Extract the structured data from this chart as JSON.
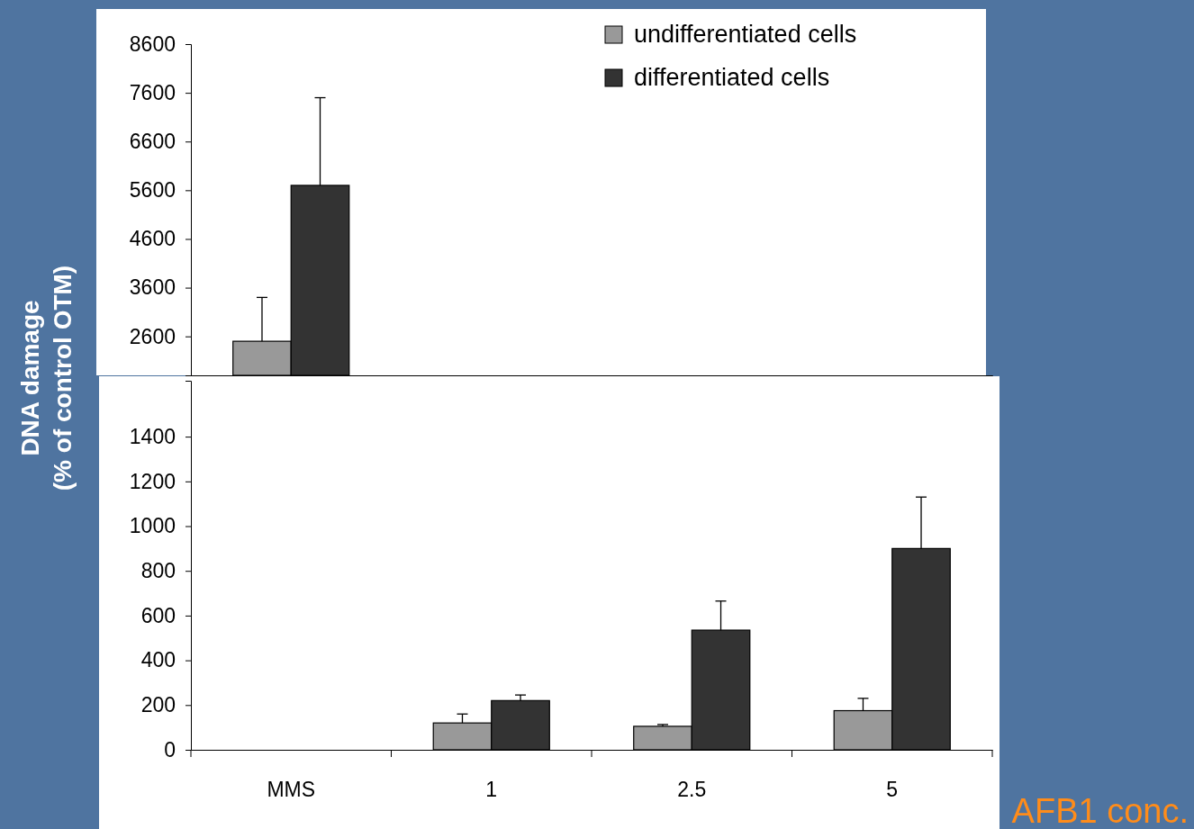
{
  "chart_data": [
    {
      "type": "bar",
      "categories": [
        null,
        null,
        null,
        null
      ],
      "ylim": [
        1800,
        8600
      ],
      "yticks": [
        2600,
        3600,
        4600,
        5600,
        6600,
        7600,
        8600
      ],
      "tick_labels": "y",
      "legend": "top right",
      "grid": false,
      "series": [
        {
          "name": "undifferentiated cells",
          "color": "#999999",
          "values": [
            2500,
            null,
            null,
            null
          ],
          "errors": [
            [
              2500,
              3400
            ],
            null,
            null,
            null
          ]
        },
        {
          "name": "differentiated cells",
          "color": "#333333",
          "values": [
            5700,
            null,
            null,
            null
          ],
          "errors": [
            [
              5700,
              7500
            ],
            null,
            null,
            null
          ]
        }
      ]
    },
    {
      "type": "bar",
      "categories": [
        "MMS",
        "1",
        "2.5",
        "5"
      ],
      "ylim": [
        0,
        1650
      ],
      "yticks": [
        0,
        200,
        400,
        600,
        800,
        1000,
        1200,
        1400
      ],
      "grid": false,
      "ylabel": "DNA damage\n(% of control OTM)",
      "xlabel": "AFB1 conc.",
      "series": [
        {
          "color": "#999999",
          "values": [
            null,
            120,
            105,
            175
          ],
          "errors": [
            null,
            [
              120,
              160
            ],
            [
              105,
              113
            ],
            [
              175,
              230
            ]
          ]
        },
        {
          "color": "#333333",
          "values": [
            null,
            220,
            535,
            900
          ],
          "errors": [
            null,
            [
              220,
              245
            ],
            [
              535,
              665
            ],
            [
              900,
              1130
            ]
          ]
        }
      ]
    }
  ]
}
